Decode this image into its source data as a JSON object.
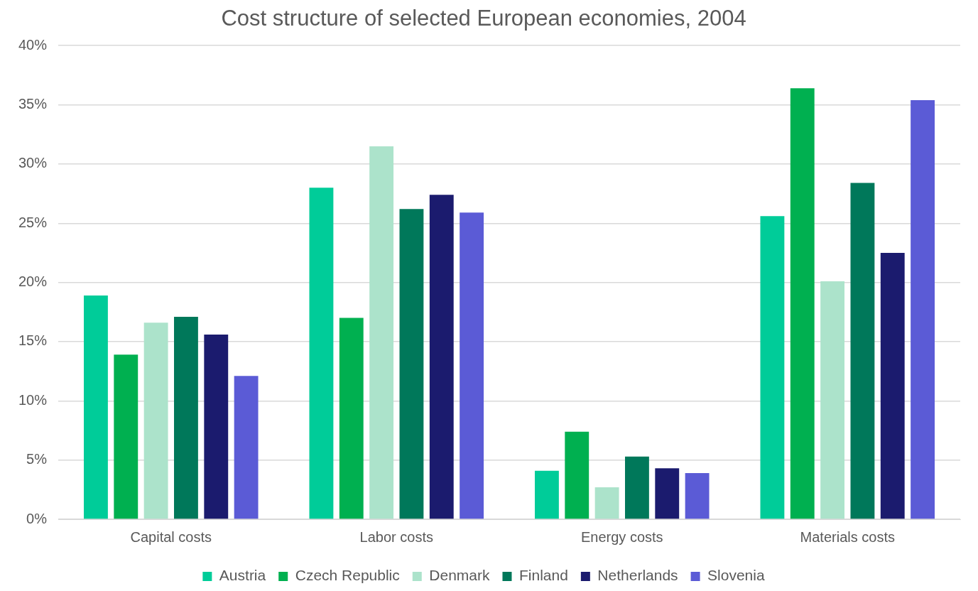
{
  "chart_data": {
    "type": "bar",
    "title": "Cost structure of selected European economies, 2004",
    "categories": [
      "Capital costs",
      "Labor costs",
      "Energy costs",
      "Materials costs"
    ],
    "series": [
      {
        "name": "Austria",
        "color": "#00cc99",
        "values": [
          18.9,
          28.0,
          4.1,
          25.6
        ]
      },
      {
        "name": "Czech Republic",
        "color": "#00b050",
        "values": [
          13.9,
          17.0,
          7.4,
          36.4
        ]
      },
      {
        "name": "Denmark",
        "color": "#ace3cb",
        "values": [
          16.6,
          31.5,
          2.7,
          20.1
        ]
      },
      {
        "name": "Finland",
        "color": "#00785a",
        "values": [
          17.1,
          26.2,
          5.3,
          28.4
        ]
      },
      {
        "name": "Netherlands",
        "color": "#1b1b6e",
        "values": [
          15.6,
          27.4,
          4.3,
          22.5
        ]
      },
      {
        "name": "Slovenia",
        "color": "#5b5bd6",
        "values": [
          12.1,
          25.9,
          3.9,
          35.4
        ]
      }
    ],
    "ylim": [
      0,
      40
    ],
    "yticks": [
      {
        "value": 0,
        "label": "0%"
      },
      {
        "value": 5,
        "label": "5%"
      },
      {
        "value": 10,
        "label": "10%"
      },
      {
        "value": 15,
        "label": "15%"
      },
      {
        "value": 20,
        "label": "20%"
      },
      {
        "value": 25,
        "label": "25%"
      },
      {
        "value": 30,
        "label": "30%"
      },
      {
        "value": 35,
        "label": "35%"
      },
      {
        "value": 40,
        "label": "40%"
      }
    ],
    "grid": "y",
    "legend": "bottom"
  }
}
